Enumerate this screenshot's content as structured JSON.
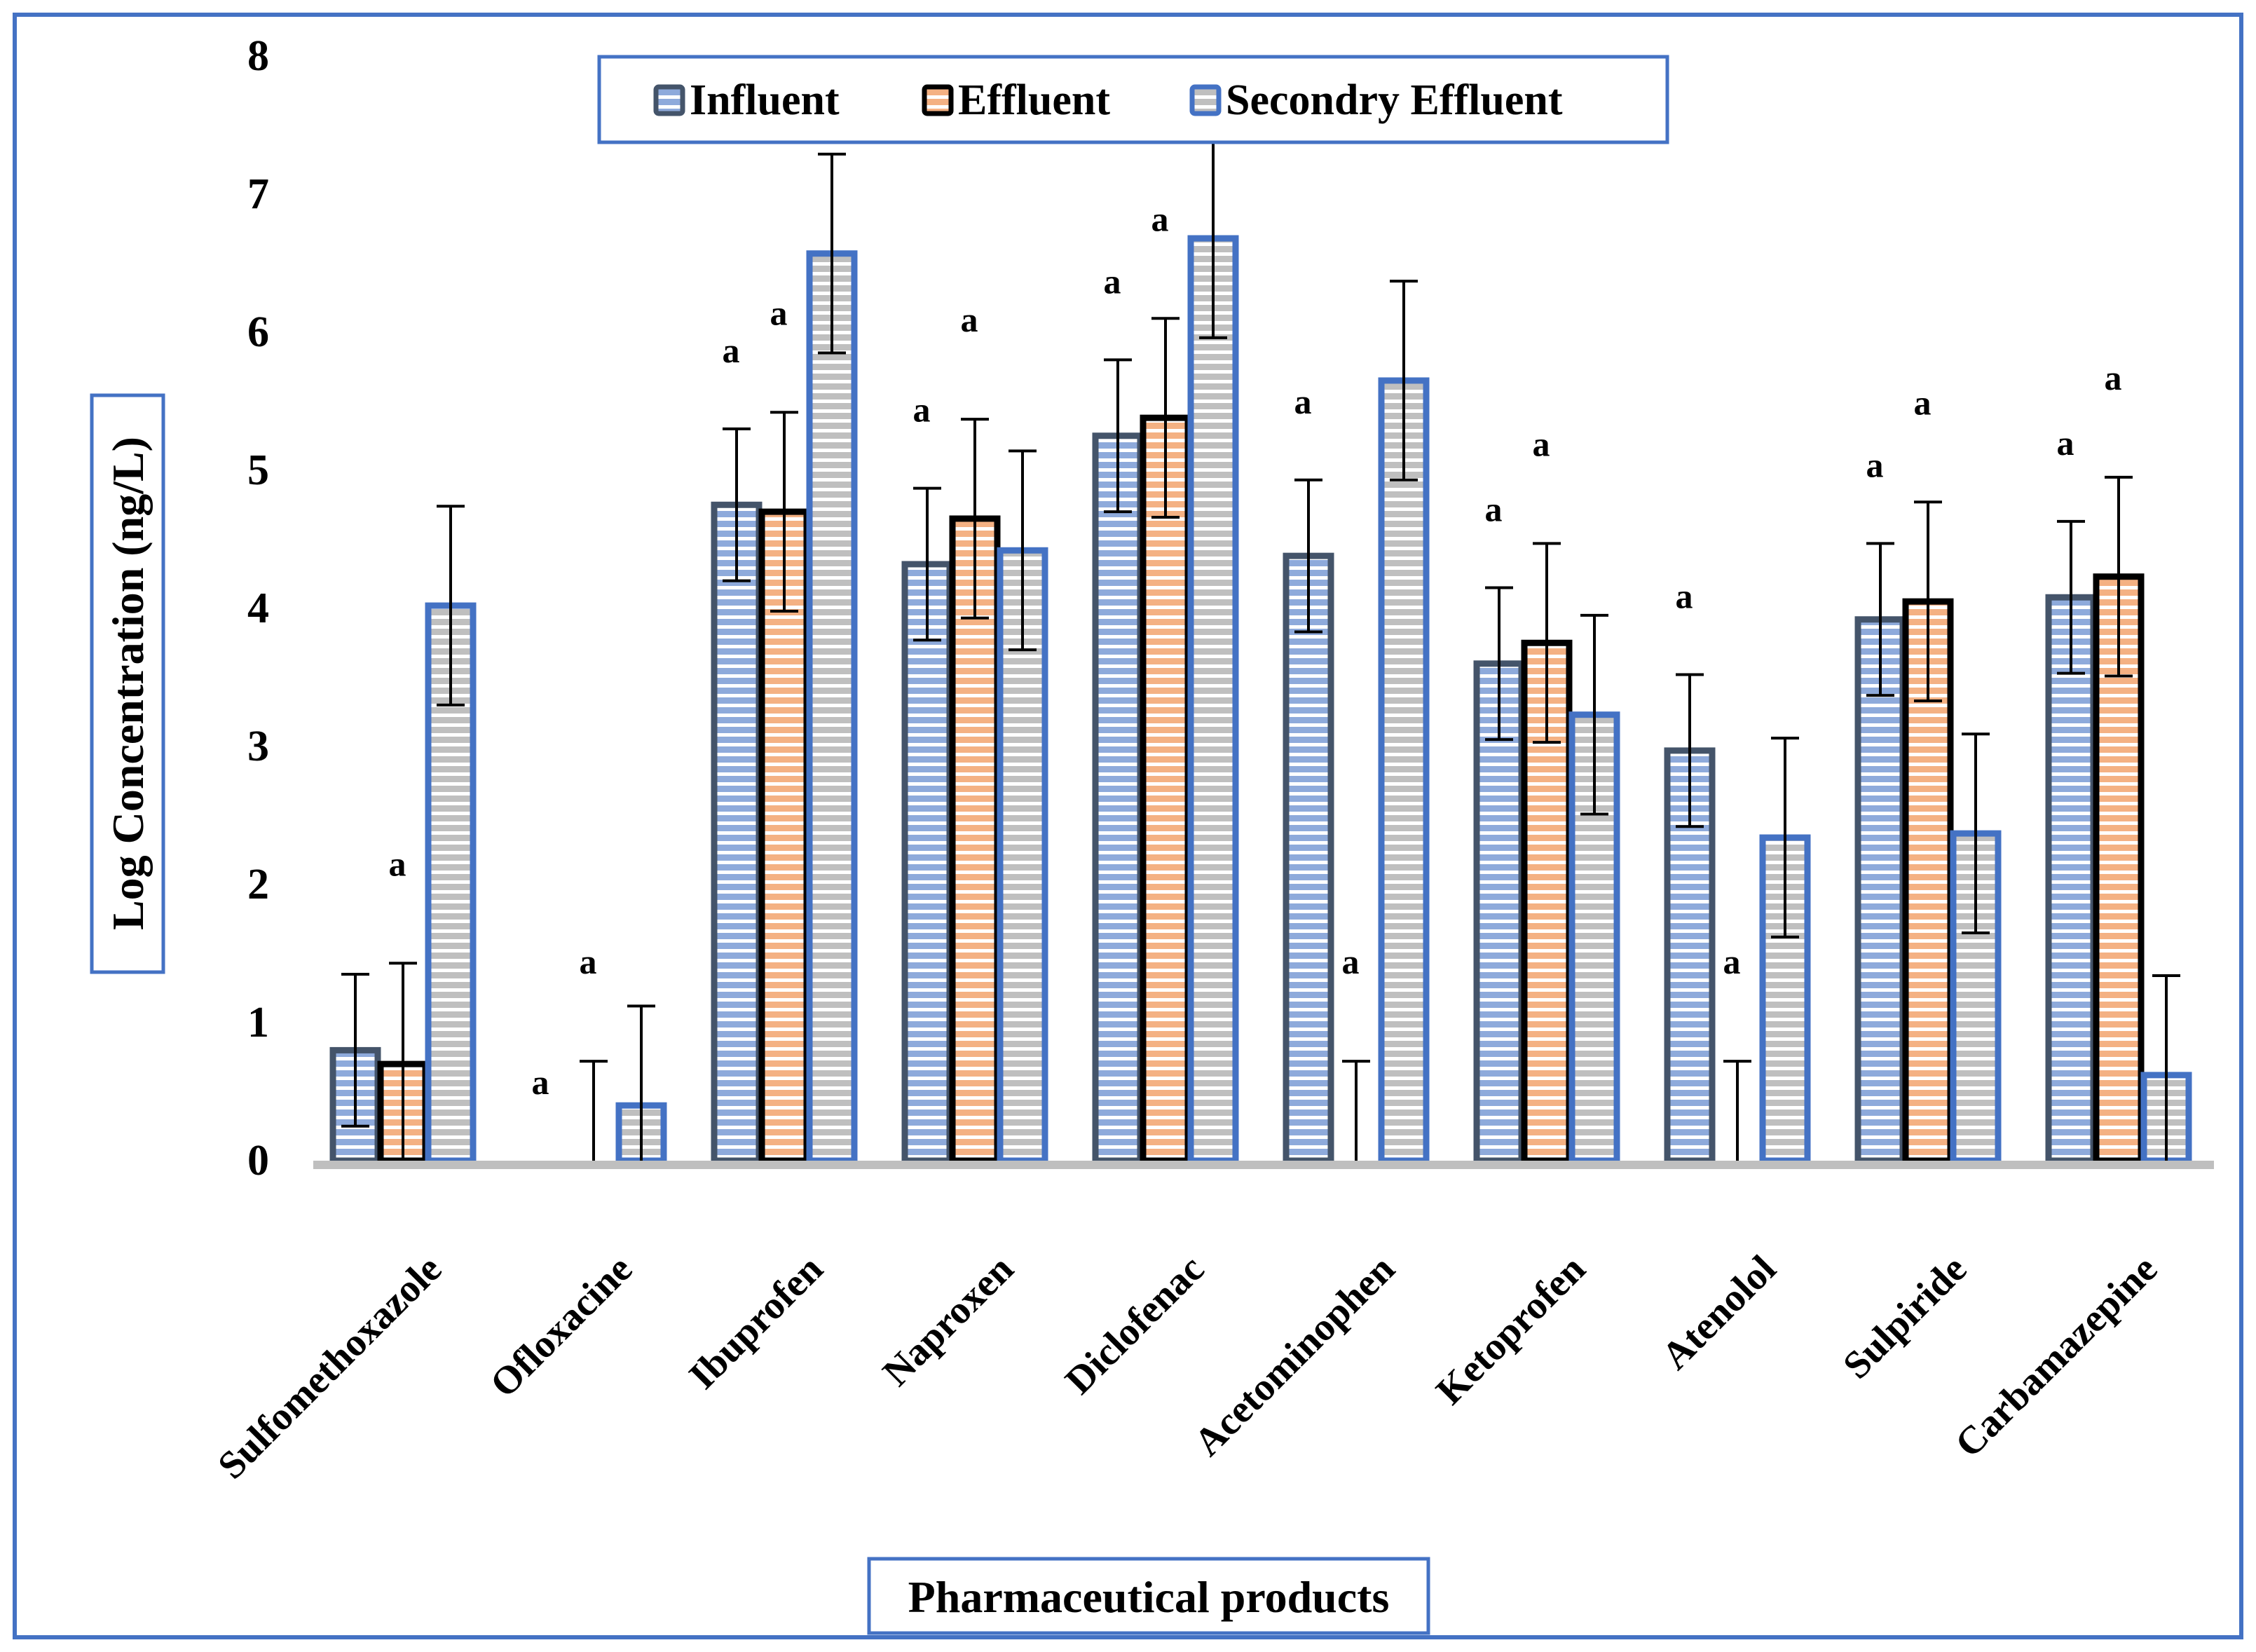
{
  "chart_data": {
    "type": "bar",
    "title": "",
    "xlabel": "Pharmaceutical products",
    "ylabel": "Log Concentration (ng/L)",
    "ylim": [
      0,
      8
    ],
    "yticks": [
      "0",
      "1",
      "2",
      "3",
      "4",
      "5",
      "6",
      "7",
      "8"
    ],
    "categories": [
      "Sulfomethoxazole",
      "Ofloxacine",
      "Ibuprofen",
      "Naproxen",
      "Diclofenac",
      "Acetominophen",
      "Ketoprofen",
      "Atenolol",
      "Sulpiride",
      "Carbamazepine"
    ],
    "legend_position": "top-center",
    "series": [
      {
        "name": "Influent",
        "fill": "#8eaadb",
        "stripe": "#ffffff",
        "edge": "#44546a",
        "values": [
          0.8,
          0,
          4.75,
          4.32,
          5.25,
          4.38,
          3.6,
          2.97,
          3.92,
          4.08
        ],
        "errors": [
          0.55,
          0,
          0.55,
          0.55,
          0.55,
          0.55,
          0.55,
          0.55,
          0.55,
          0.55
        ],
        "sig": [
          "",
          "a",
          "a",
          "a",
          "a",
          "a",
          "a",
          "a",
          "a",
          "a"
        ]
      },
      {
        "name": "Effluent",
        "fill": "#f4b183",
        "stripe": "#ffffff",
        "edge": "#000000",
        "values": [
          0.7,
          0,
          4.7,
          4.65,
          5.38,
          0,
          3.75,
          0,
          4.05,
          4.23
        ],
        "errors": [
          0.73,
          0.72,
          0.72,
          0.72,
          0.72,
          0.72,
          0.72,
          0.72,
          0.72,
          0.72
        ],
        "sig": [
          "a",
          "a",
          "a",
          "a",
          "a",
          "a",
          "a",
          "a",
          "a",
          "a"
        ]
      },
      {
        "name": "Secondry Effluent",
        "fill": "#bfbfbf",
        "stripe": "#ffffff",
        "edge": "#4472c4",
        "values": [
          4.02,
          0.4,
          6.57,
          4.42,
          6.68,
          5.65,
          3.23,
          2.34,
          2.37,
          0.62
        ],
        "errors": [
          0.72,
          0.72,
          0.72,
          0.72,
          0.72,
          0.72,
          0.72,
          0.72,
          0.72,
          0.72
        ],
        "sig": [
          "",
          "",
          "",
          "",
          "",
          "",
          "",
          "",
          "",
          ""
        ]
      }
    ]
  }
}
